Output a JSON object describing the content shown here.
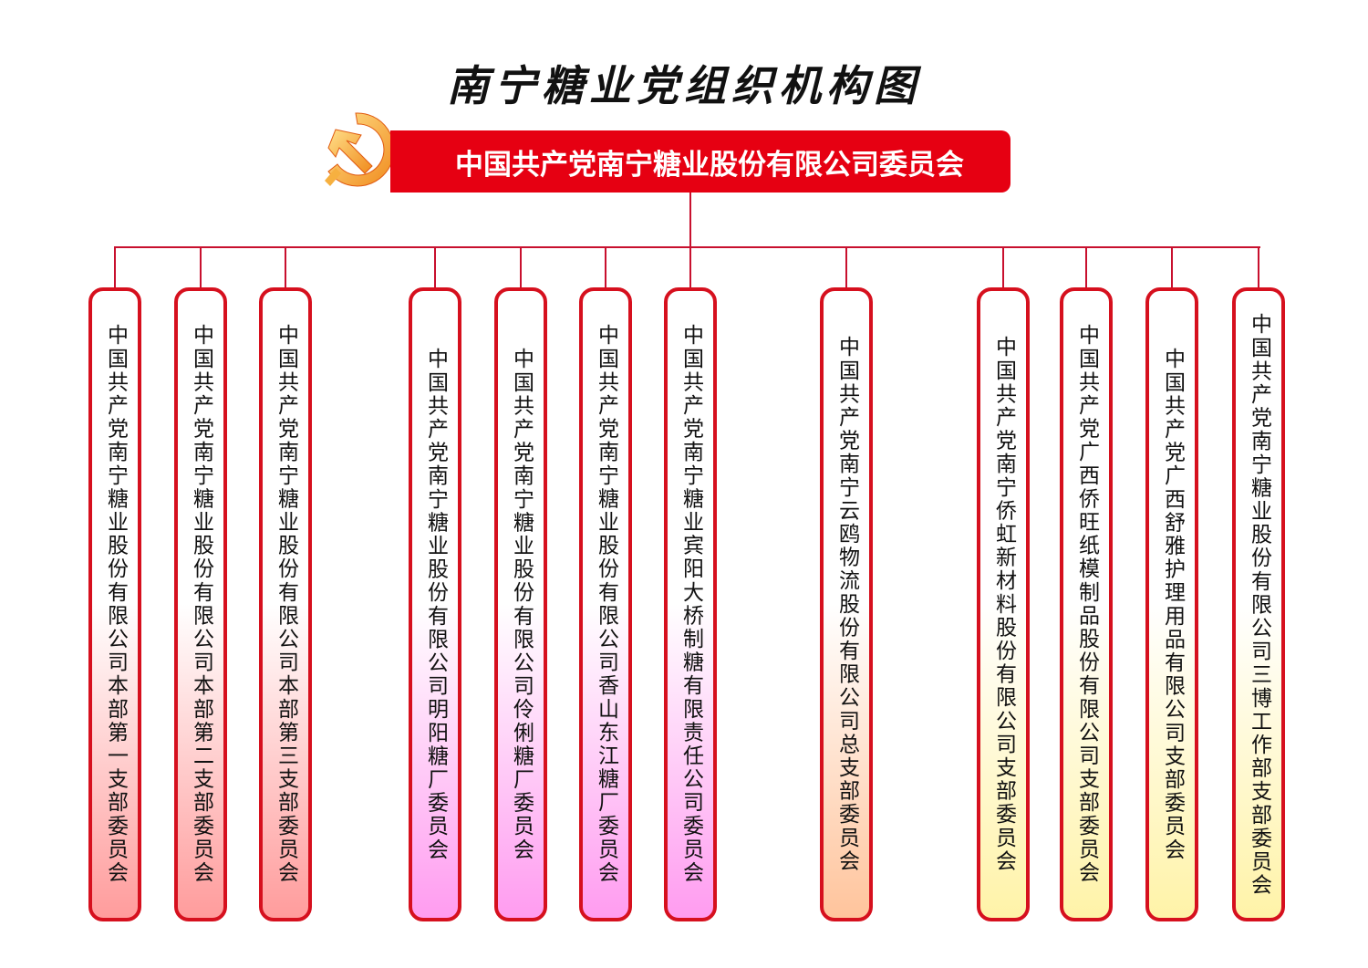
{
  "title": "南宁糖业党组织机构图",
  "root": {
    "label": "中国共产党南宁糖业股份有限公司委员会",
    "icon": "party-emblem-icon"
  },
  "colors": {
    "accent": "#e60012",
    "group_headquarters": "#ff9c9c",
    "group_sugar_mills": "#ff9cf0",
    "group_logistics": "#ffc49c",
    "group_subsidiaries": "#fff3a8"
  },
  "branches": [
    {
      "label": "中国共产党南宁糖业股份有限公司本部第一支部委员会",
      "group": "group_headquarters"
    },
    {
      "label": "中国共产党南宁糖业股份有限公司本部第二支部委员会",
      "group": "group_headquarters"
    },
    {
      "label": "中国共产党南宁糖业股份有限公司本部第三支部委员会",
      "group": "group_headquarters"
    },
    {
      "label": "中国共产党南宁糖业股份有限公司明阳糖厂委员会",
      "group": "group_sugar_mills"
    },
    {
      "label": "中国共产党南宁糖业股份有限公司伶俐糖厂委员会",
      "group": "group_sugar_mills"
    },
    {
      "label": "中国共产党南宁糖业股份有限公司香山东江糖厂委员会",
      "group": "group_sugar_mills"
    },
    {
      "label": "中国共产党南宁糖业宾阳大桥制糖有限责任公司委员会",
      "group": "group_sugar_mills"
    },
    {
      "label": "中国共产党南宁云鸥物流股份有限公司总支部委员会",
      "group": "group_logistics"
    },
    {
      "label": "中国共产党南宁侨虹新材料股份有限公司支部委员会",
      "group": "group_subsidiaries"
    },
    {
      "label": "中国共产党广西侨旺纸模制品股份有限公司支部委员会",
      "group": "group_subsidiaries"
    },
    {
      "label": "中国共产党广西舒雅护理用品有限公司支部委员会",
      "group": "group_subsidiaries"
    },
    {
      "label": "中国共产党南宁糖业股份有限公司三博工作部支部委员会",
      "group": "group_subsidiaries"
    }
  ]
}
